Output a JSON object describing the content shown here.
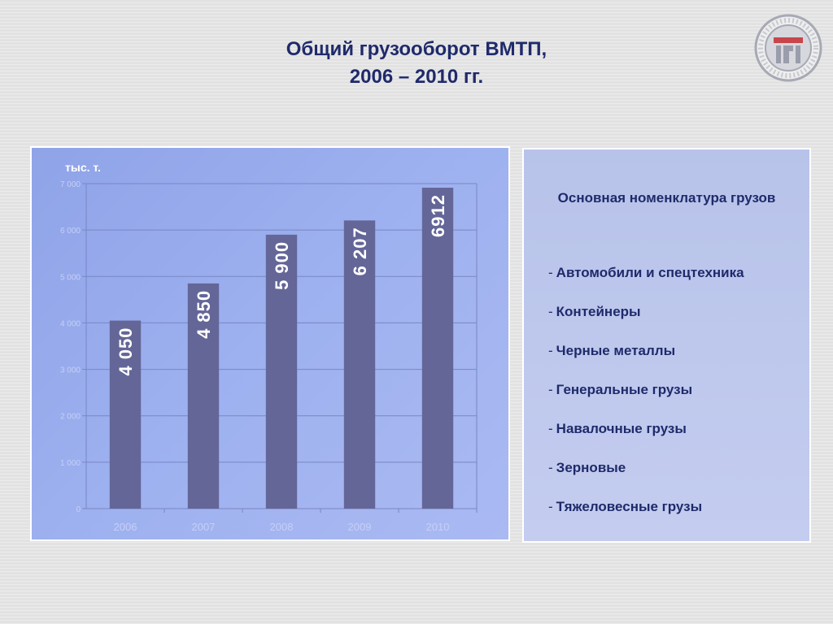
{
  "title": {
    "line1": "Общий грузооборот ВМТП,",
    "line2": "2006 – 2010 гг."
  },
  "colors": {
    "title": "#1f2a6b",
    "bar": "#646698",
    "panel": "#9db0ef"
  },
  "chart_data": {
    "type": "bar",
    "ylabel": "тыс. т.",
    "categories": [
      "2006",
      "2007",
      "2008",
      "2009",
      "2010"
    ],
    "values": [
      4050,
      4850,
      5900,
      6207,
      6912
    ],
    "data_labels": [
      "4 050",
      "4 850",
      "5 900",
      "6 207",
      "6912"
    ],
    "yticks": [
      0,
      1000,
      2000,
      3000,
      4000,
      5000,
      6000,
      7000
    ],
    "ytick_labels": [
      "0",
      "1 000",
      "2 000",
      "3 000",
      "4 000",
      "5 000",
      "6 000",
      "7 000"
    ],
    "ylim": [
      0,
      7000
    ],
    "grid": true
  },
  "cargo_list": {
    "title": "Основная номенклатура грузов",
    "bullet": "-",
    "items": [
      "Автомобили и спецтехника",
      "Контейнеры",
      "Черные металлы",
      "Генеральные грузы",
      "Навалочные грузы",
      "Зерновые",
      "Тяжеловесные грузы"
    ]
  }
}
